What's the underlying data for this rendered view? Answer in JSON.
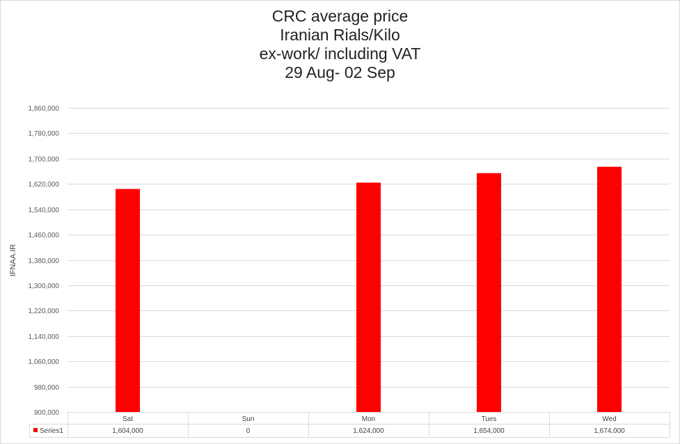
{
  "chart_data": {
    "type": "bar",
    "title_lines": [
      "CRC average price",
      "Iranian Rials/Kilo",
      "ex-work/ including VAT",
      "29 Aug- 02 Sep"
    ],
    "ylabel": "IFNAA.IR",
    "categories": [
      "Sat",
      "Sun",
      "Mon",
      "Tues",
      "Wed"
    ],
    "series": [
      {
        "name": "Series1",
        "color": "#ff0000",
        "values": [
          1604000,
          0,
          1624000,
          1654000,
          1674000
        ],
        "value_labels": [
          "1,604,000",
          "0",
          "1,624,000",
          "1,654,000",
          "1,674,000"
        ]
      }
    ],
    "ylim": [
      900000,
      1860000
    ],
    "yticks": [
      900000,
      980000,
      1060000,
      1140000,
      1220000,
      1300000,
      1380000,
      1460000,
      1540000,
      1620000,
      1700000,
      1780000,
      1860000
    ],
    "ytick_labels": [
      "900,000",
      "980,000",
      "1,060,000",
      "1,140,000",
      "1,220,000",
      "1,300,000",
      "1,380,000",
      "1,460,000",
      "1,540,000",
      "1,620,000",
      "1,700,000",
      "1,780,000",
      "1,860,000"
    ],
    "grid": true,
    "legend": "data-table",
    "gridline_color": "#d9d9d9"
  }
}
